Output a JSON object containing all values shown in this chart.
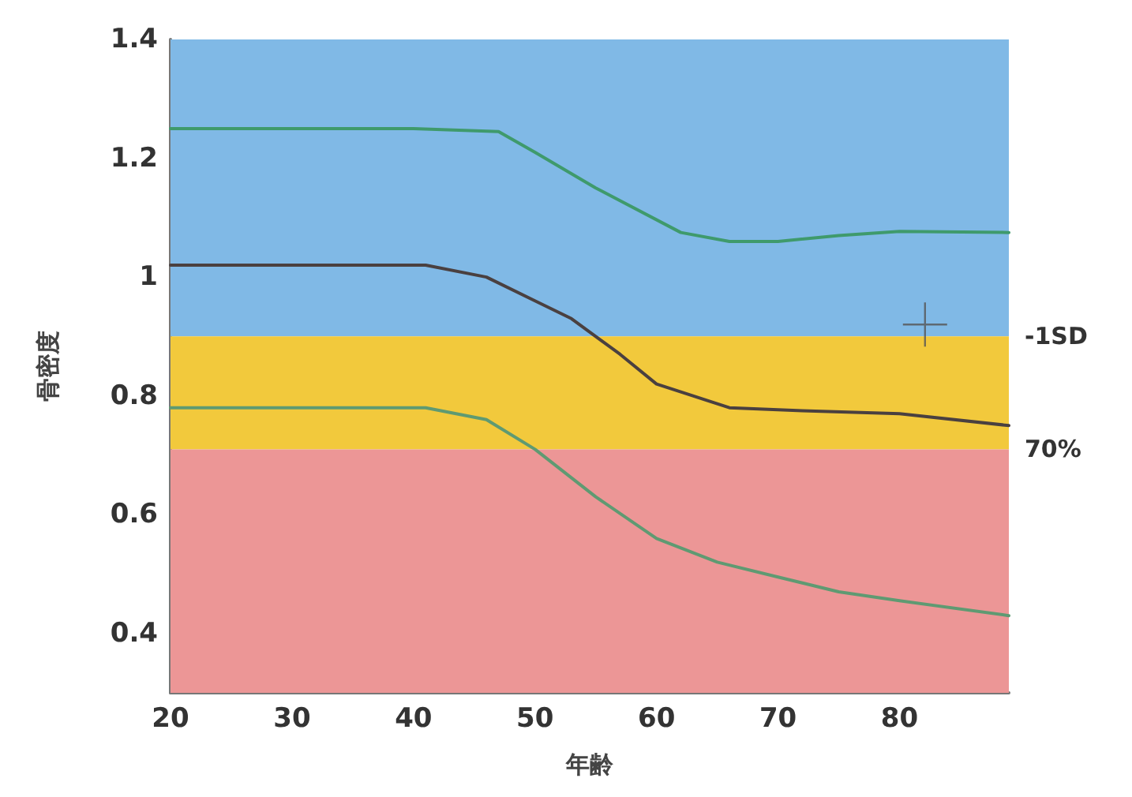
{
  "chart_data": {
    "type": "line",
    "xlabel": "年齢",
    "ylabel": "骨密度",
    "xlim": [
      20,
      89
    ],
    "xticks": [
      20,
      30,
      40,
      50,
      60,
      70,
      80
    ],
    "ylim": [
      0.3,
      1.4
    ],
    "yticks": [
      0.4,
      0.6,
      0.8,
      1,
      1.2,
      1.4
    ],
    "grid": false,
    "marker": "none",
    "line_style": "solid",
    "bands": [
      {
        "axis": "y",
        "from": 0.9,
        "to": 1.4,
        "color": "#80b9e6"
      },
      {
        "axis": "y",
        "from": 0.71,
        "to": 0.9,
        "color": "#f2c93c",
        "label": "-1SD"
      },
      {
        "axis": "y",
        "from": 0.3,
        "to": 0.71,
        "color": "#ec9696",
        "label": "70%"
      }
    ],
    "series": [
      {
        "color": "#3f9a6c",
        "x": [
          20,
          40,
          47,
          50,
          55,
          62,
          66,
          70,
          75,
          80,
          89
        ],
        "values": [
          1.25,
          1.25,
          1.245,
          1.21,
          1.15,
          1.075,
          1.06,
          1.06,
          1.07,
          1.077,
          1.075
        ]
      },
      {
        "color": "#4a4040",
        "x": [
          20,
          41,
          46,
          50,
          53,
          57,
          60,
          63,
          66,
          72,
          80,
          89
        ],
        "values": [
          1.02,
          1.02,
          1.0,
          0.96,
          0.93,
          0.87,
          0.82,
          0.8,
          0.78,
          0.775,
          0.77,
          0.75
        ]
      },
      {
        "color": "#5f9a72",
        "x": [
          20,
          41,
          46,
          50,
          55,
          60,
          65,
          70,
          75,
          80,
          89
        ],
        "values": [
          0.78,
          0.78,
          0.76,
          0.71,
          0.63,
          0.56,
          0.52,
          0.495,
          0.47,
          0.455,
          0.43
        ]
      },
      {
        "type": "scatter",
        "marker": "cross",
        "color": "#555555",
        "x": [
          82.1
        ],
        "values": [
          0.92
        ]
      }
    ]
  }
}
